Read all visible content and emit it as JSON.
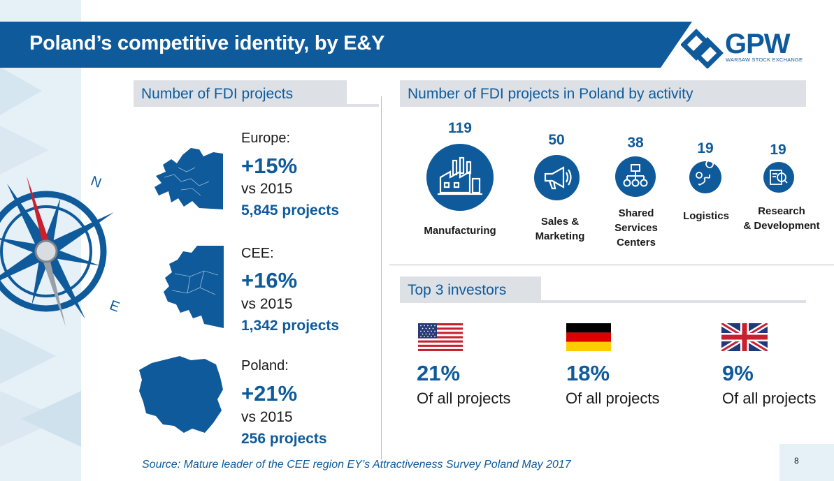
{
  "slide": {
    "title": "Poland’s competitive identity, by E&Y",
    "page_number": "8",
    "source": "Source: Mature leader of the CEE region EY’s Attractiveness Survey Poland May 2017"
  },
  "logo": {
    "name": "GPW",
    "subtitle": "WARSAW STOCK EXCHANGE",
    "icon": "gpw-logo-icon"
  },
  "compass": {
    "icon": "compass-rose-icon",
    "north_label": "N",
    "east_label": "E"
  },
  "fdi": {
    "heading": "Number of FDI projects",
    "regions": [
      {
        "label": "Europe:",
        "change": "+15%",
        "vs": "vs 2015",
        "projects": "5,845 projects",
        "map_icon": "europe-map-icon"
      },
      {
        "label": "CEE:",
        "change": "+16%",
        "vs": "vs 2015",
        "projects": "1,342 projects",
        "map_icon": "cee-map-icon"
      },
      {
        "label": "Poland:",
        "change": "+21%",
        "vs": "vs 2015",
        "projects": "256 projects",
        "map_icon": "poland-map-icon"
      }
    ]
  },
  "activity": {
    "heading": "Number of FDI projects in Poland by activity",
    "items": [
      {
        "count": "119",
        "label": "Manufacturing",
        "icon": "factory-icon"
      },
      {
        "count": "50",
        "label": "Sales &\nMarketing",
        "icon": "megaphone-icon"
      },
      {
        "count": "38",
        "label": "Shared\nServices\nCenters",
        "icon": "org-chart-icon"
      },
      {
        "count": "19",
        "label": "Logistics",
        "icon": "route-pin-icon"
      },
      {
        "count": "19",
        "label": "Research\n& Development",
        "icon": "magnifier-document-icon"
      }
    ]
  },
  "investors": {
    "heading": "Top 3 investors",
    "items": [
      {
        "pct": "21%",
        "desc": "Of all projects",
        "flag": "usa-flag-icon"
      },
      {
        "pct": "18%",
        "desc": "Of all projects",
        "flag": "germany-flag-icon"
      },
      {
        "pct": "9%",
        "desc": "Of all projects",
        "flag": "uk-flag-icon"
      }
    ]
  },
  "colors": {
    "brand_blue": "#0e5a9b",
    "banner_blue": "#0e5a9b",
    "section_gray": "#dde1e6",
    "strip_light_blue": "#e6f0f7"
  }
}
